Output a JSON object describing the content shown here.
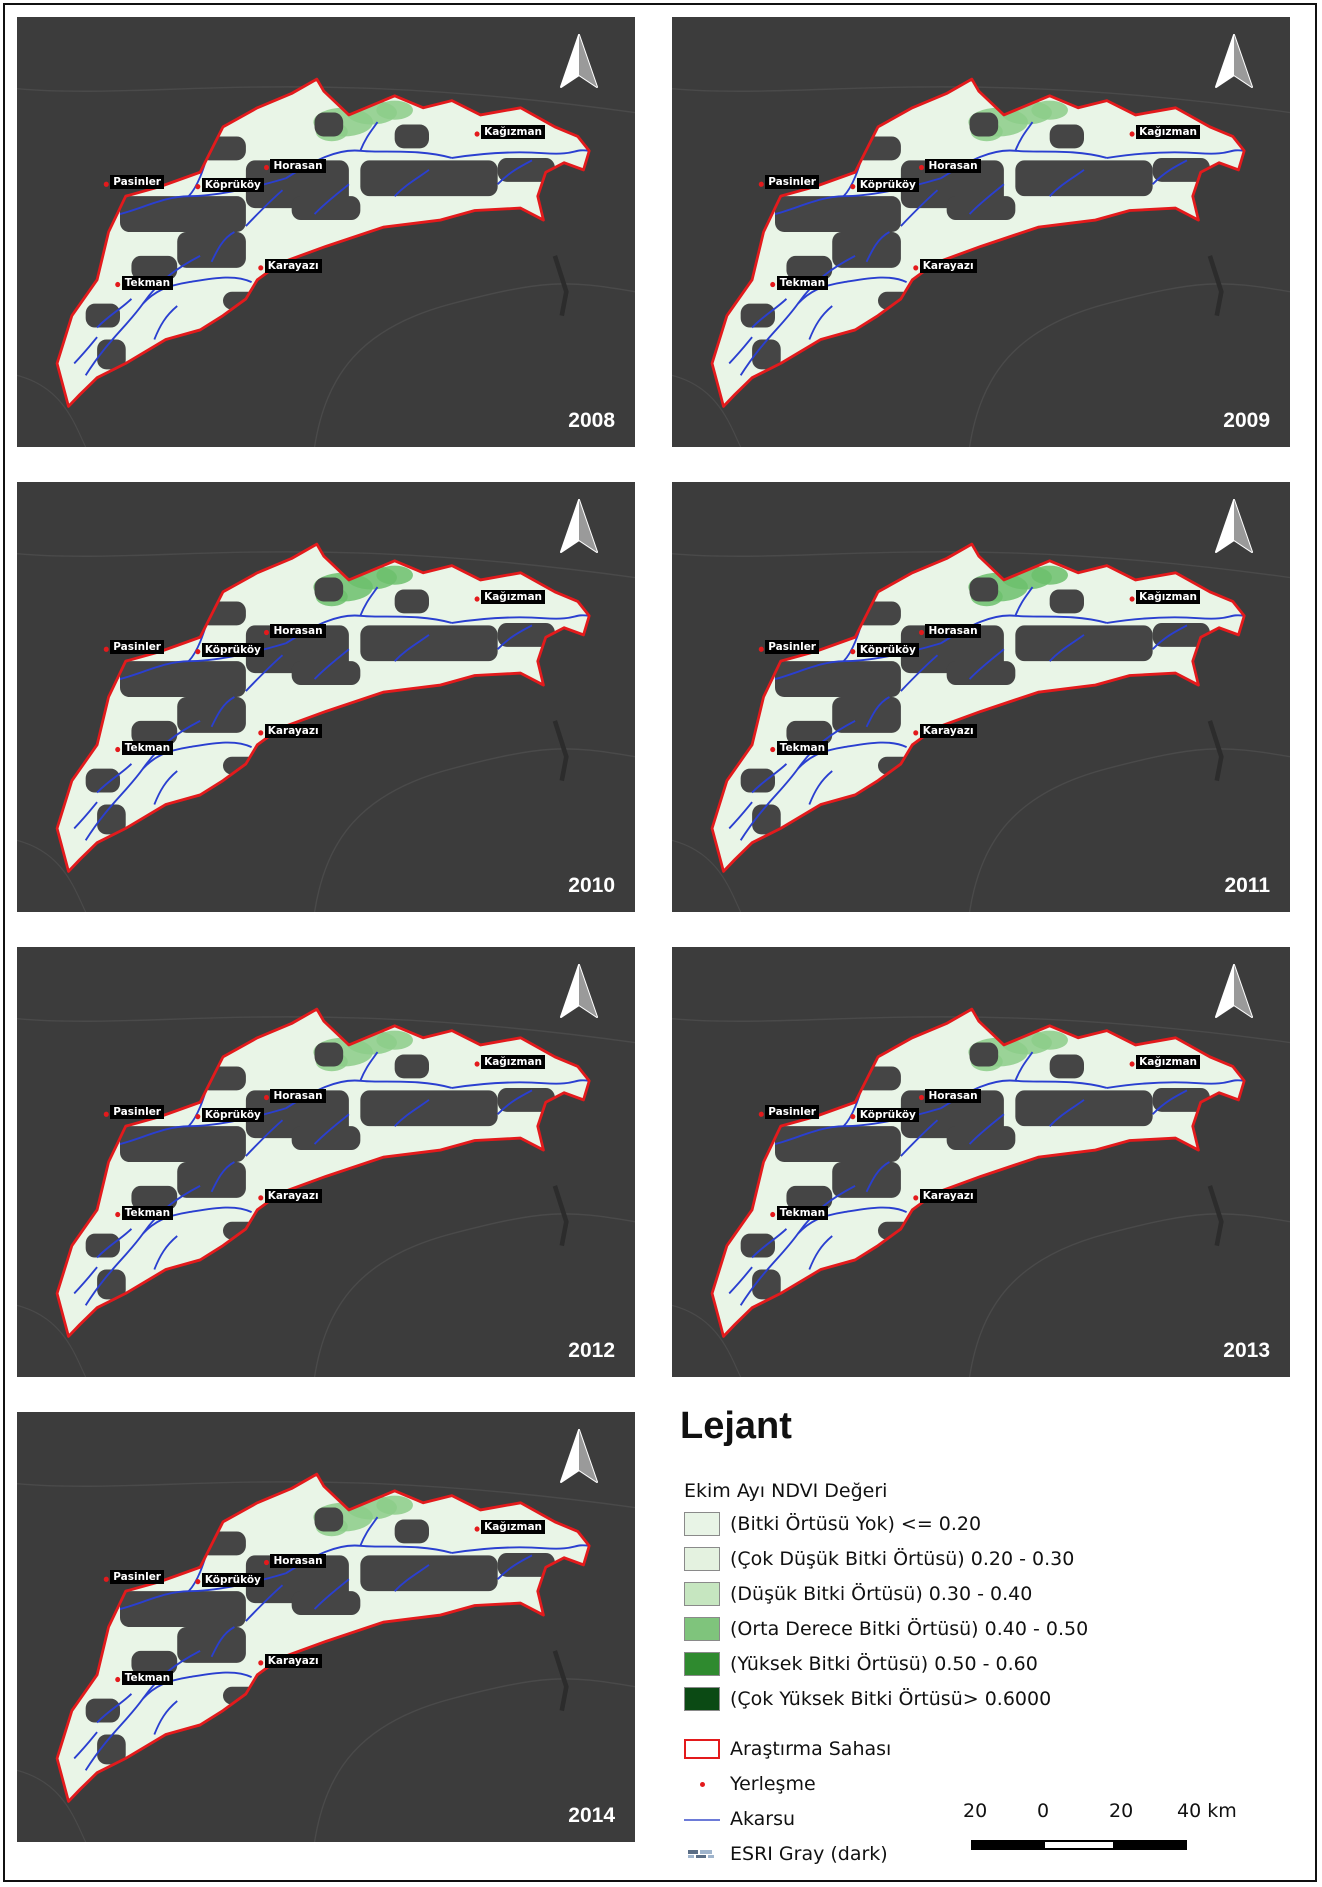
{
  "places": [
    "Pasinler",
    "Köprüköy",
    "Horasan",
    "Kağızman",
    "Tekman",
    "Karayazı"
  ],
  "panels": [
    {
      "year": "2008"
    },
    {
      "year": "2009"
    },
    {
      "year": "2010"
    },
    {
      "year": "2011"
    },
    {
      "year": "2012"
    },
    {
      "year": "2013"
    },
    {
      "year": "2014"
    }
  ],
  "legend": {
    "title": "Lejant",
    "subtitle": "Ekim Ayı NDVI Değeri",
    "classes": [
      {
        "label": "(Bitki Örtüsü Yok) <= 0.20",
        "color": "#e8f4e6"
      },
      {
        "label": "(Çok Düşük Bitki Örtüsü) 0.20 - 0.30",
        "color": "#e4f2e0"
      },
      {
        "label": "(Düşük Bitki Örtüsü) 0.30 - 0.40",
        "color": "#c6e6c0"
      },
      {
        "label": "(Orta Derece Bitki Örtüsü) 0.40 - 0.50",
        "color": "#7fc47c"
      },
      {
        "label": "(Yüksek Bitki Örtüsü) 0.50 - 0.60",
        "color": "#2f8a2f"
      },
      {
        "label": "(Çok Yüksek Bitki Örtüsü> 0.6000",
        "color": "#0b4a14"
      }
    ],
    "symbols": {
      "study_area": "Araştırma Sahası",
      "settlement": "Yerleşme",
      "stream": "Akarsu",
      "basemap": "ESRI Gray (dark)"
    },
    "scale": {
      "labels": [
        "20",
        "0",
        "20",
        "40 km"
      ]
    }
  },
  "colors": {
    "basemap": "#3c3c3c",
    "boundary": "#e31a1c",
    "stream": "#2a3fd0",
    "land": "#e9f5e7",
    "settlement": "#e31a1c"
  }
}
